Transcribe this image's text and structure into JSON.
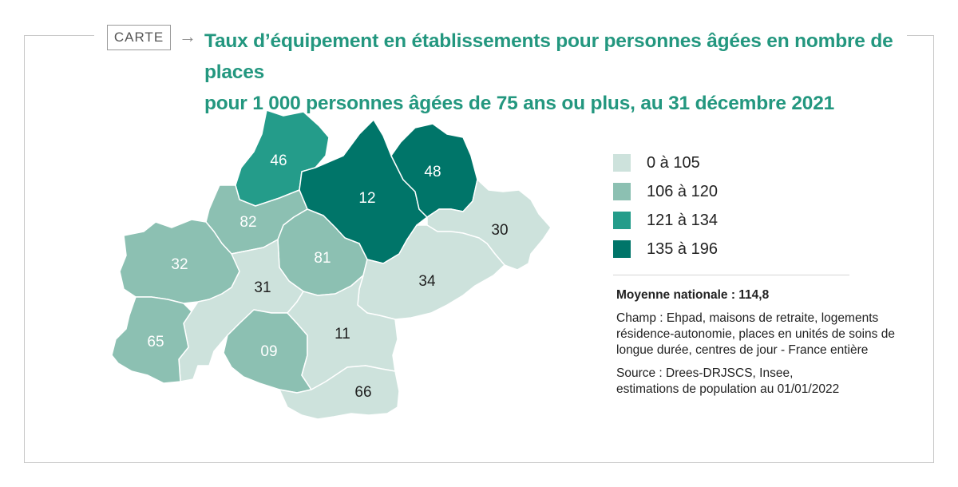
{
  "header": {
    "tag": "CARTE",
    "arrow": "→",
    "title_line1": "Taux d’équipement en établissements pour personnes âgées en nombre de places",
    "title_line2": "pour 1 000 personnes âgées de 75 ans ou plus, au 31 décembre 2021"
  },
  "colors": {
    "class_1": "#cde2dc",
    "class_2": "#8cc0b2",
    "class_3": "#249c8a",
    "class_4": "#007569",
    "title": "#23977f",
    "border": "#ffffff"
  },
  "legend": {
    "items": [
      {
        "label": "0 à 105",
        "color": "#cde2dc"
      },
      {
        "label": "106 à 120",
        "color": "#8cc0b2"
      },
      {
        "label": "121 à 134",
        "color": "#249c8a"
      },
      {
        "label": "135 à 196",
        "color": "#007569"
      }
    ]
  },
  "departments": [
    {
      "code": "46",
      "class": 3
    },
    {
      "code": "12",
      "class": 4
    },
    {
      "code": "48",
      "class": 4
    },
    {
      "code": "82",
      "class": 2
    },
    {
      "code": "81",
      "class": 2
    },
    {
      "code": "30",
      "class": 1
    },
    {
      "code": "32",
      "class": 2
    },
    {
      "code": "31",
      "class": 1
    },
    {
      "code": "34",
      "class": 1
    },
    {
      "code": "65",
      "class": 2
    },
    {
      "code": "09",
      "class": 2
    },
    {
      "code": "11",
      "class": 1
    },
    {
      "code": "66",
      "class": 1
    }
  ],
  "notes": {
    "average": "Moyenne nationale : 114,8",
    "scope": "Champ : Ehpad, maisons de retraite, logements résidence-autonomie, places en unités de soins de longue durée, centres de jour - France entière",
    "source_line1": "Source : Drees-DRJSCS, Insee,",
    "source_line2": "estimations de population au 01/01/2022"
  }
}
